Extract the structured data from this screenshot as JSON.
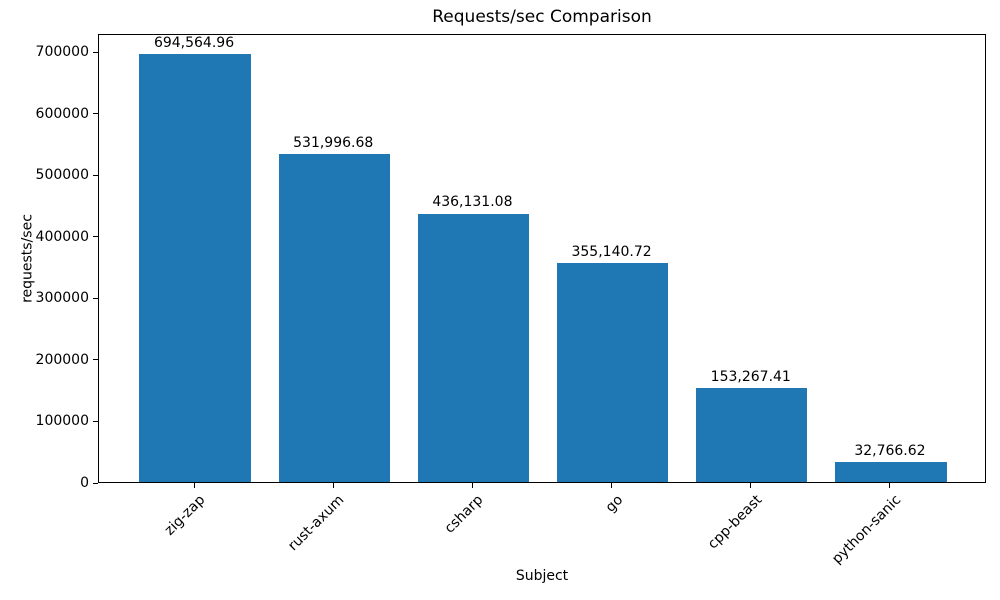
{
  "chart_data": {
    "type": "bar",
    "title": "Requests/sec Comparison",
    "xlabel": "Subject",
    "ylabel": "requests/sec",
    "categories": [
      "zig-zap",
      "rust-axum",
      "csharp",
      "go",
      "cpp-beast",
      "python-sanic"
    ],
    "values": [
      694564.96,
      531996.68,
      436131.08,
      355140.72,
      153267.41,
      32766.62
    ],
    "value_labels": [
      "694,564.96",
      "531,996.68",
      "436,131.08",
      "355,140.72",
      "153,267.41",
      "32,766.62"
    ],
    "yticks": [
      0,
      100000,
      200000,
      300000,
      400000,
      500000,
      600000,
      700000
    ],
    "ytick_labels": [
      "0",
      "100000",
      "200000",
      "300000",
      "400000",
      "500000",
      "600000",
      "700000"
    ],
    "ylim": [
      0,
      729293
    ],
    "bar_color": "#1f77b4",
    "grid": false,
    "legend": null
  }
}
